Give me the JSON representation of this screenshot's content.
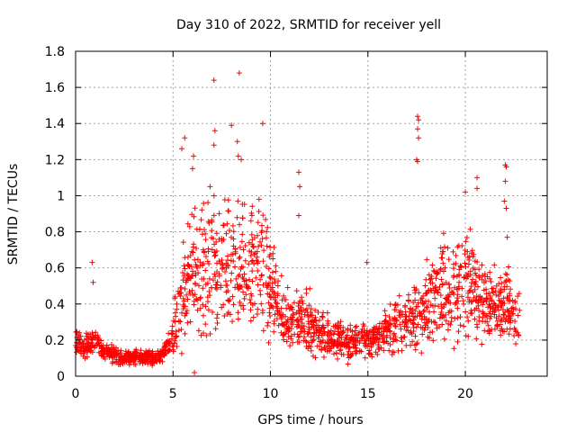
{
  "chart_data": {
    "type": "scatter",
    "title": "Day 310 of 2022, SRMTID for receiver yell",
    "xlabel": "GPS time / hours",
    "ylabel": "SRMTID / TECUs",
    "xlim": [
      0,
      24.2
    ],
    "ylim": [
      0,
      1.8
    ],
    "xticks": [
      0,
      5,
      10,
      15,
      20
    ],
    "xtick_labels": [
      "0",
      "5",
      "10",
      "15",
      "20"
    ],
    "yticks": [
      0,
      0.2,
      0.4,
      0.6,
      0.8,
      1.0,
      1.2,
      1.4,
      1.6,
      1.8
    ],
    "ytick_labels": [
      "0",
      "0.2",
      "0.4",
      "0.6",
      "0.8",
      "1",
      "1.2",
      "1.4",
      "1.6",
      "1.8"
    ],
    "grid": true,
    "marker": "+",
    "color": "#ff0000",
    "series": [
      {
        "name": "SRMTID",
        "profile_note": "dense scatter; typical level by time",
        "x": [
          0.0,
          0.5,
          1.0,
          1.5,
          2.0,
          2.5,
          3.0,
          3.5,
          4.0,
          4.5,
          5.0,
          5.5,
          6.0,
          6.5,
          7.0,
          7.5,
          8.0,
          8.5,
          9.0,
          9.5,
          10.0,
          10.5,
          11.0,
          11.5,
          12.0,
          12.5,
          13.0,
          13.5,
          14.0,
          14.5,
          15.0,
          15.5,
          16.0,
          16.5,
          17.0,
          17.5,
          18.0,
          18.5,
          19.0,
          19.5,
          20.0,
          20.5,
          21.0,
          21.5,
          22.0,
          22.5,
          22.8
        ],
        "y": [
          0.2,
          0.16,
          0.2,
          0.13,
          0.12,
          0.1,
          0.11,
          0.1,
          0.1,
          0.12,
          0.22,
          0.45,
          0.55,
          0.6,
          0.62,
          0.6,
          0.58,
          0.6,
          0.62,
          0.6,
          0.5,
          0.35,
          0.3,
          0.3,
          0.3,
          0.25,
          0.22,
          0.2,
          0.18,
          0.18,
          0.2,
          0.22,
          0.25,
          0.28,
          0.3,
          0.33,
          0.4,
          0.45,
          0.5,
          0.5,
          0.52,
          0.5,
          0.42,
          0.4,
          0.38,
          0.35,
          0.3
        ],
        "outliers": [
          {
            "x": 0.85,
            "y": 0.63
          },
          {
            "x": 0.9,
            "y": 0.52
          },
          {
            "x": 5.6,
            "y": 1.32
          },
          {
            "x": 5.45,
            "y": 1.26
          },
          {
            "x": 6.1,
            "y": 0.02
          },
          {
            "x": 6.05,
            "y": 1.22
          },
          {
            "x": 7.1,
            "y": 1.64
          },
          {
            "x": 7.15,
            "y": 1.36
          },
          {
            "x": 7.1,
            "y": 1.28
          },
          {
            "x": 8.0,
            "y": 1.39
          },
          {
            "x": 8.4,
            "y": 1.68
          },
          {
            "x": 8.3,
            "y": 1.3
          },
          {
            "x": 8.35,
            "y": 1.22
          },
          {
            "x": 9.6,
            "y": 1.4
          },
          {
            "x": 11.45,
            "y": 1.13
          },
          {
            "x": 11.5,
            "y": 1.05
          },
          {
            "x": 11.45,
            "y": 0.89
          },
          {
            "x": 14.95,
            "y": 0.63
          },
          {
            "x": 17.55,
            "y": 1.44
          },
          {
            "x": 17.6,
            "y": 1.42
          },
          {
            "x": 17.55,
            "y": 1.37
          },
          {
            "x": 17.6,
            "y": 1.32
          },
          {
            "x": 17.5,
            "y": 1.2
          },
          {
            "x": 17.55,
            "y": 1.19
          },
          {
            "x": 20.0,
            "y": 1.02
          },
          {
            "x": 20.6,
            "y": 1.1
          },
          {
            "x": 20.6,
            "y": 1.04
          },
          {
            "x": 22.05,
            "y": 1.17
          },
          {
            "x": 22.1,
            "y": 1.16
          },
          {
            "x": 22.05,
            "y": 1.08
          },
          {
            "x": 22.0,
            "y": 0.97
          },
          {
            "x": 22.1,
            "y": 0.93
          },
          {
            "x": 22.15,
            "y": 0.77
          },
          {
            "x": 6.0,
            "y": 1.15
          },
          {
            "x": 6.9,
            "y": 1.05
          },
          {
            "x": 8.5,
            "y": 1.2
          }
        ]
      }
    ]
  }
}
